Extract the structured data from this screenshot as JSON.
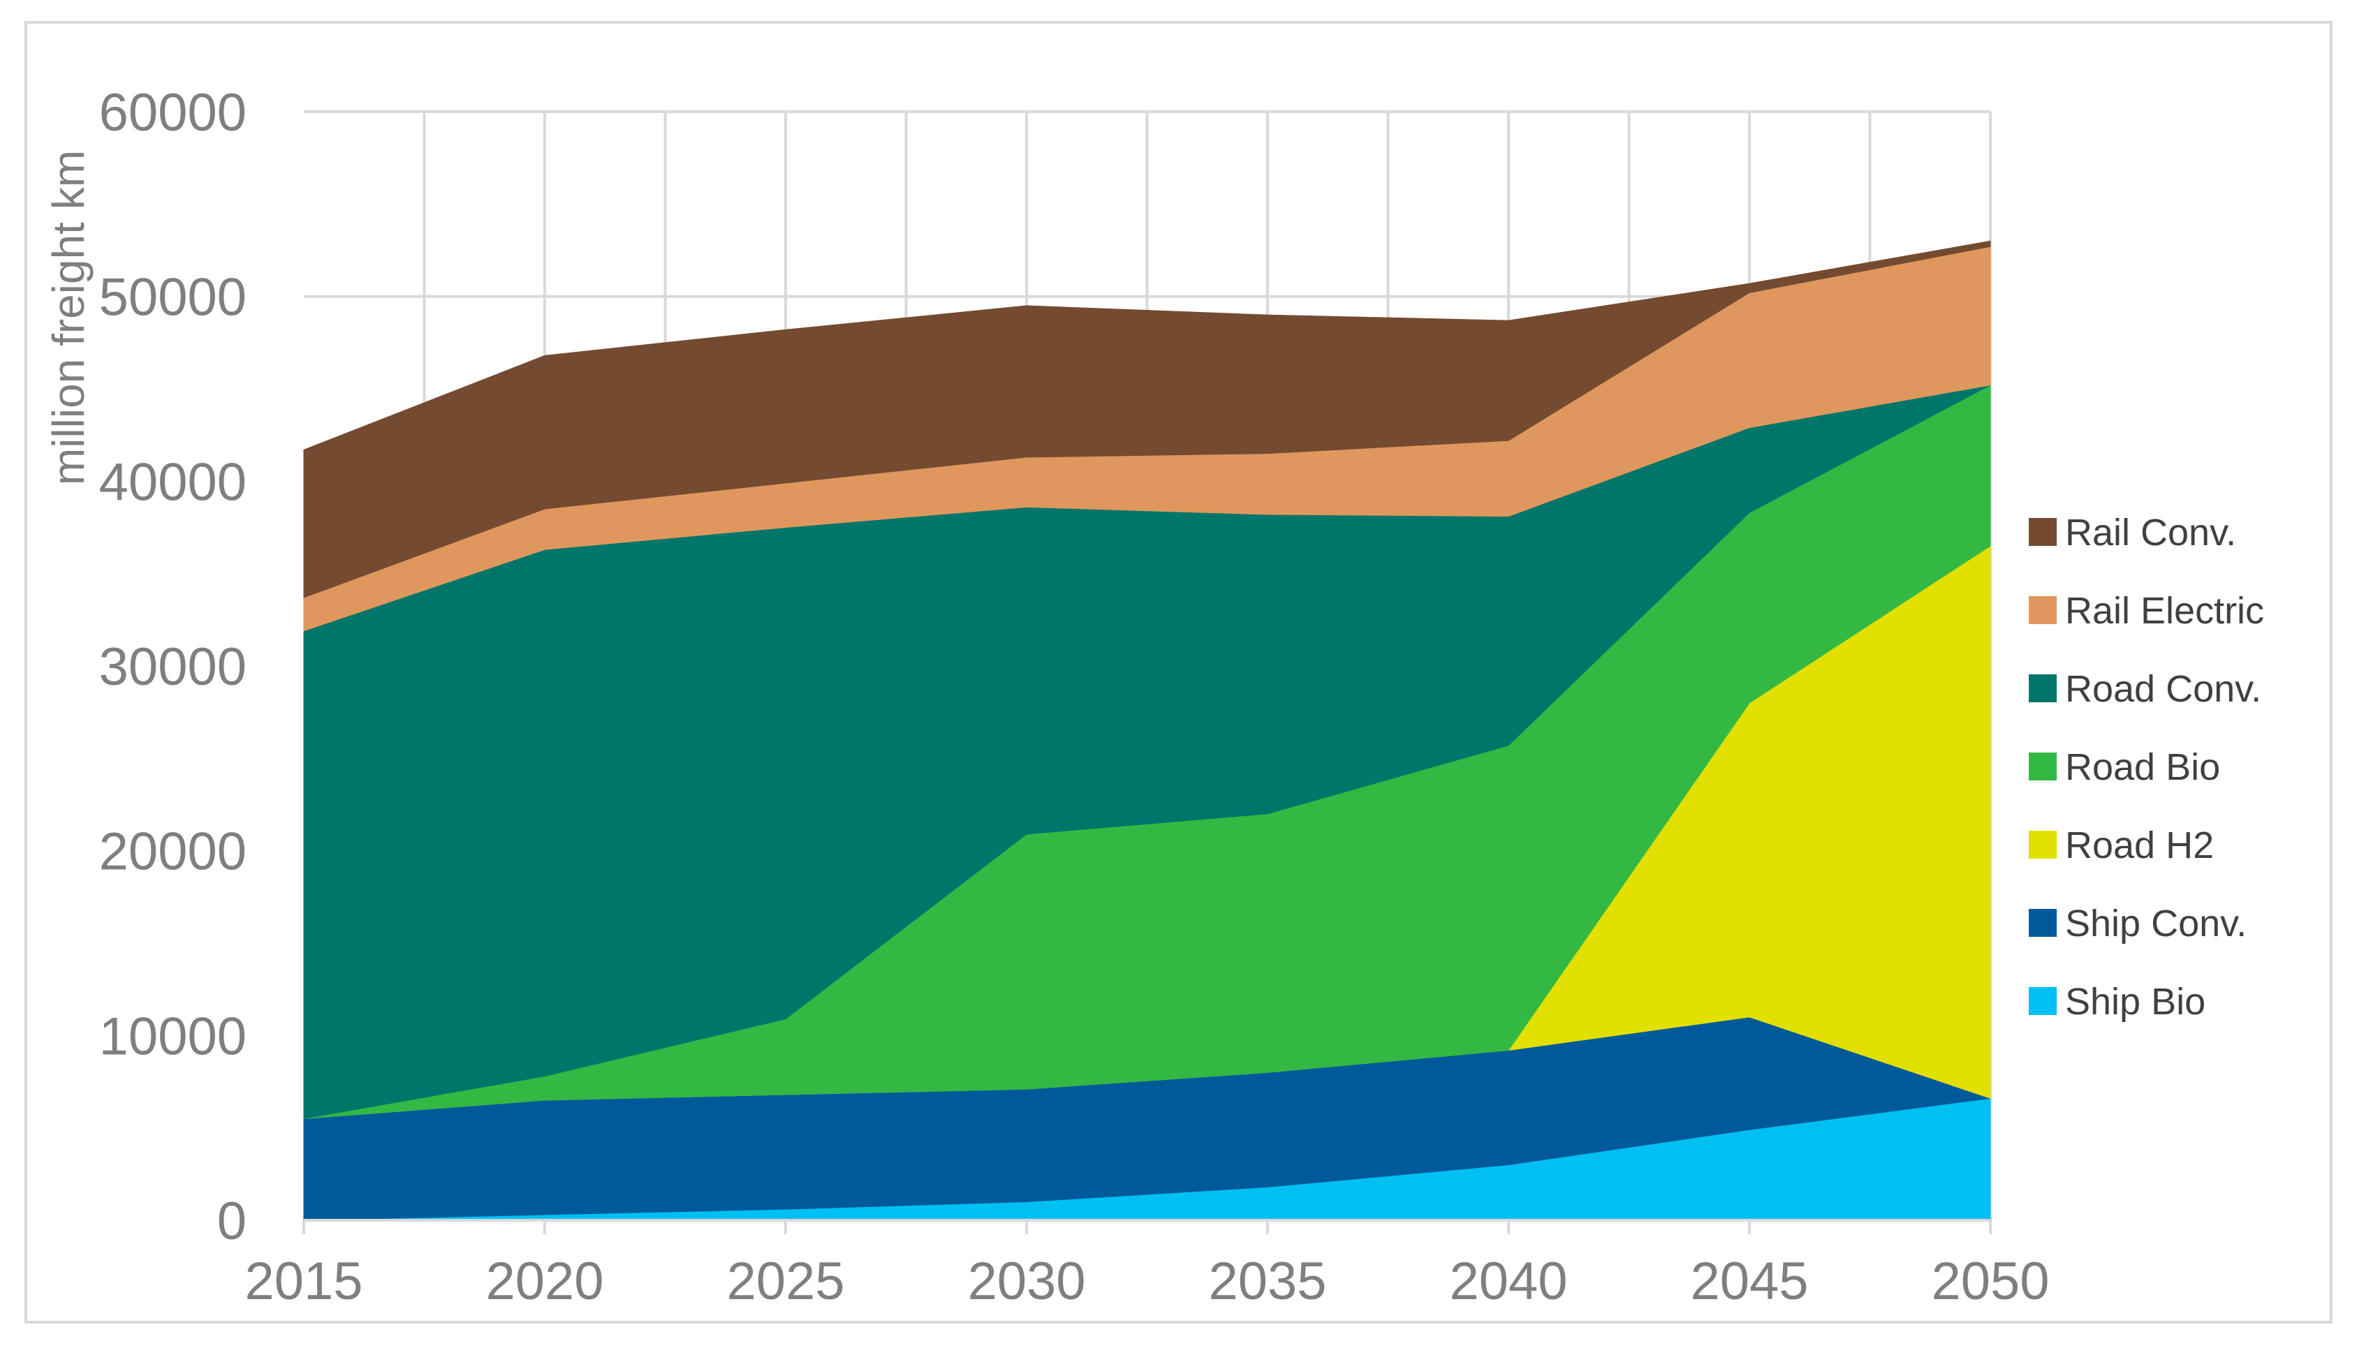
{
  "chart_data": {
    "type": "area",
    "stacked": true,
    "title": "",
    "xlabel": "",
    "ylabel": "million freight km",
    "x": [
      2015,
      2020,
      2025,
      2030,
      2035,
      2040,
      2045,
      2050
    ],
    "ylim": [
      0,
      60000
    ],
    "yticks": [
      0,
      10000,
      20000,
      30000,
      40000,
      50000,
      60000
    ],
    "grid": true,
    "legend_position": "right",
    "series": [
      {
        "name": "Ship Bio",
        "color": "#00bff3",
        "values": [
          0,
          300,
          600,
          1000,
          1800,
          3000,
          4900,
          6600
        ]
      },
      {
        "name": "Ship Conv.",
        "color": "#005a9a",
        "values": [
          5500,
          6200,
          6200,
          6100,
          6200,
          6200,
          6100,
          0
        ]
      },
      {
        "name": "Road H2",
        "color": "#e1e000",
        "values": [
          0,
          0,
          0,
          0,
          0,
          0,
          17000,
          29900
        ]
      },
      {
        "name": "Road Bio",
        "color": "#33b843",
        "values": [
          0,
          1300,
          4100,
          13800,
          14000,
          16500,
          10300,
          8700
        ]
      },
      {
        "name": "Road Conv.",
        "color": "#00766a",
        "values": [
          26400,
          28500,
          26600,
          17700,
          16200,
          12400,
          4600,
          0
        ]
      },
      {
        "name": "Rail Electric",
        "color": "#df975e",
        "values": [
          1800,
          2200,
          2400,
          2700,
          3300,
          4100,
          7300,
          7500
        ]
      },
      {
        "name": "Rail Conv.",
        "color": "#744b31",
        "values": [
          8000,
          8300,
          8300,
          8200,
          7500,
          6500,
          500,
          300
        ]
      }
    ]
  }
}
